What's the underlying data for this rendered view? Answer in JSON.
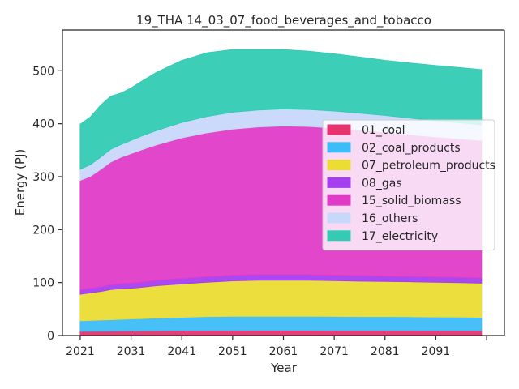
{
  "chart_data": {
    "type": "area",
    "stacked": true,
    "title": "19_THA 14_03_07_food_beverages_and_tobacco",
    "xlabel": "Year",
    "ylabel": "Energy (PJ)",
    "xlim": [
      2017,
      2018
    ],
    "ylim": [
      0,
      577
    ],
    "x_ticks": [
      2021,
      2031,
      2041,
      2051,
      2061,
      2071,
      2081,
      2091,
      2101
    ],
    "x_tick_labels": [
      "2021",
      "2031",
      "2041",
      "2051",
      "2061",
      "2071",
      "2081",
      "2091",
      ""
    ],
    "y_ticks": [
      0,
      100,
      200,
      300,
      400,
      500
    ],
    "legend_position": "right",
    "grid": false,
    "x": [
      2021,
      2023,
      2025,
      2027,
      2029,
      2031,
      2033,
      2036,
      2041,
      2046,
      2051,
      2056,
      2061,
      2066,
      2071,
      2076,
      2081,
      2086,
      2091,
      2096,
      2100
    ],
    "series": [
      {
        "name": "01_coal",
        "color": "#e8336e",
        "values": [
          8,
          8,
          8.2,
          8.4,
          8.6,
          8.8,
          9,
          9.2,
          9.5,
          9.7,
          9.8,
          9.9,
          9.9,
          9.9,
          9.8,
          9.8,
          9.7,
          9.7,
          9.6,
          9.6,
          9.5
        ]
      },
      {
        "name": "02_coal_products",
        "color": "#3dbdf7",
        "values": [
          20,
          20.5,
          21,
          21.5,
          22,
          22.5,
          23,
          24,
          25,
          26,
          26.5,
          26.5,
          26.5,
          26.5,
          26.3,
          26,
          26,
          25.8,
          25.5,
          25.3,
          25
        ]
      },
      {
        "name": "07_petroleum_products",
        "color": "#ebdd33",
        "values": [
          50,
          52,
          54,
          57,
          58,
          58,
          59,
          61,
          63,
          65,
          67,
          68,
          68,
          68,
          67.5,
          67,
          66.5,
          66,
          65.5,
          65,
          64.5
        ]
      },
      {
        "name": "08_gas",
        "color": "#a53ef0",
        "values": [
          8,
          8.2,
          8.5,
          8.8,
          9,
          9.2,
          9.5,
          9.8,
          10,
          10.2,
          10.5,
          10.5,
          10.5,
          10.5,
          10.3,
          10.2,
          10,
          10,
          9.8,
          9.7,
          9.5
        ]
      },
      {
        "name": "15_solid_biomass",
        "color": "#e03cc8",
        "values": [
          207,
          212,
          222,
          232,
          239,
          245,
          250,
          256,
          266,
          272,
          276,
          279,
          281,
          280,
          278,
          275,
          272,
          268,
          265,
          262,
          260
        ]
      },
      {
        "name": "16_others",
        "color": "#c8d8fb",
        "values": [
          21,
          22,
          23,
          24,
          24,
          25,
          26,
          27,
          29,
          31,
          32,
          32,
          32,
          32,
          32,
          32,
          31.5,
          31,
          30.5,
          30,
          29.5
        ]
      },
      {
        "name": "17_electricity",
        "color": "#33cbb4",
        "values": [
          85,
          90,
          98,
          100,
          97,
          99,
          103,
          110,
          117,
          120,
          118,
          114,
          112,
          110,
          108,
          106,
          104,
          104,
          104,
          104,
          104
        ]
      }
    ]
  }
}
